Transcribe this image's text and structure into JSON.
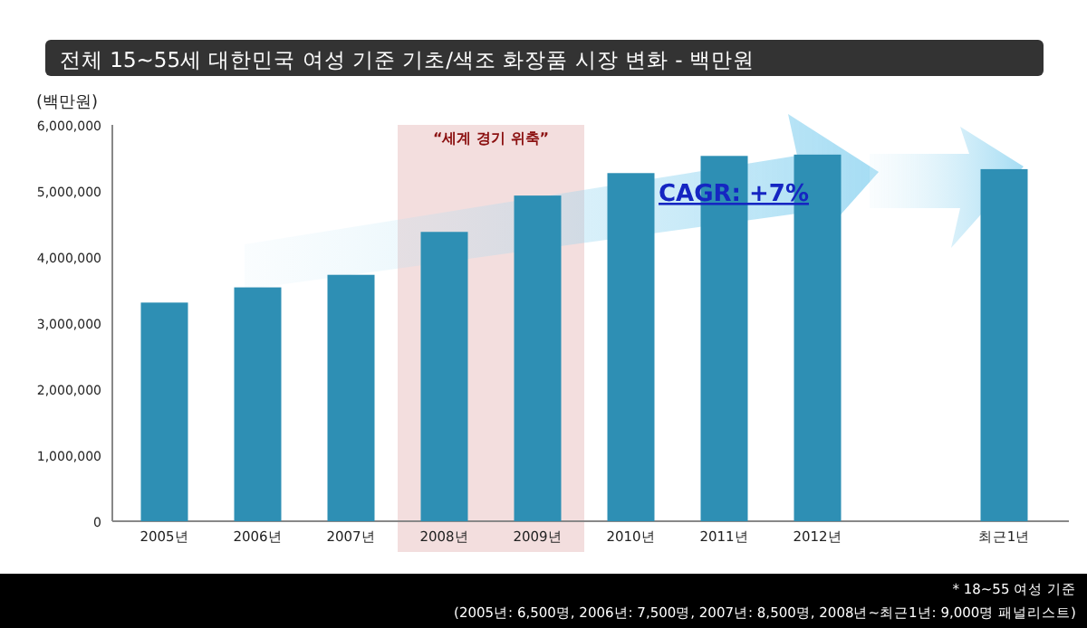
{
  "chart_data": {
    "type": "bar",
    "title": "전체 15~55세  대한민국 여성 기준 기초/색조 화장품 시장 변화 - 백만원",
    "ylabel": "(백만원)",
    "categories": [
      "2005년",
      "2006년",
      "2007년",
      "2008년",
      "2009년",
      "2010년",
      "2011년",
      "2012년",
      null,
      "최근1년"
    ],
    "values": [
      3310000,
      3540000,
      3730000,
      4380000,
      4930000,
      5270000,
      5530000,
      5550000,
      null,
      5330000
    ],
    "color": "#2e8fb4",
    "ylim": [
      0,
      6000000
    ],
    "yticks": [
      {
        "value": 0,
        "label": "0"
      },
      {
        "value": 1000000,
        "label": "1,000,000"
      },
      {
        "value": 2000000,
        "label": "2,000,000"
      },
      {
        "value": 3000000,
        "label": "3,000,000"
      },
      {
        "value": 4000000,
        "label": "4,000,000"
      },
      {
        "value": 5000000,
        "label": "5,000,000"
      },
      {
        "value": 6000000,
        "label": "6,000,000"
      }
    ],
    "bands": [
      {
        "axis": "x",
        "from": "2008년",
        "to": "2009년",
        "label": "“세계 경기 위축”",
        "color": "#f3dede"
      }
    ],
    "annotations": [
      "CAGR: +7%",
      "* 18~55 여성 기준",
      "(2005년: 6,500명, 2006년: 7,500명, 2007년: 8,500명, 2008년~최근1년: 9,000명 패널리스트)"
    ]
  }
}
